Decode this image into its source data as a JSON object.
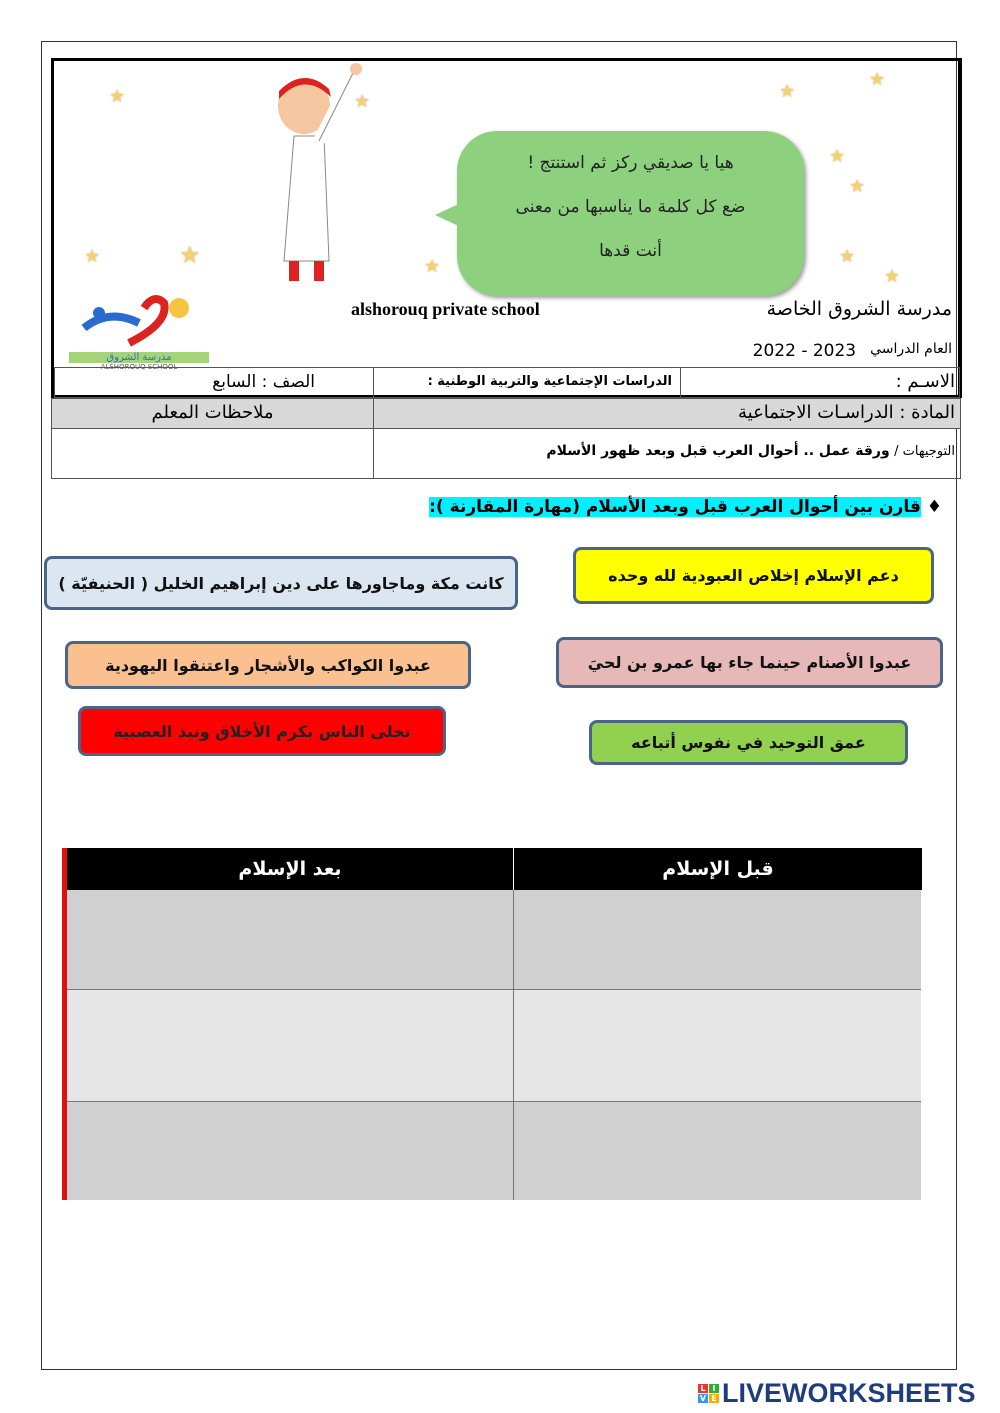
{
  "bubble": {
    "lines": [
      "هيا يا صديقي ركز ثم استنتج !",
      "ضع كل كلمة ما يناسبها من معنى",
      "أنت قدها"
    ]
  },
  "school": {
    "name_ar": "مدرسة الشروق الخاصة",
    "name_en": "alshorouq private school",
    "logo_text_ar": "مدرسة الشروق",
    "logo_text_en": "ALSHOROUQ SCHOOL",
    "year_label": "العام الدراسي",
    "year": "2022 - 2023"
  },
  "info": {
    "name_label": "الاسـم :",
    "subject_field": "الدراسات الإجتماعية والتربية الوطنية :",
    "grade": "الصف : السابع",
    "subject": "المادة : الدراسـات الاجتماعية",
    "teacher_notes": "ملاحظات المعلم",
    "directions_label": "التوجيهات /",
    "directions": "ورقة عمل .. أحوال العرب قبل وبعد ظهور الأسلام"
  },
  "question": "قارن بين أحوال العرب قبل وبعد الأسلام (مهارة المقارنة ):",
  "cards": [
    {
      "text": "دعم الإسلام إخلاص العبودية لله وحده",
      "color": "#ffff00"
    },
    {
      "text": "كانت مكة وماجاورها على دين إبراهيم الخليل ( الحنيفيّة )",
      "color": "#dce6f1"
    },
    {
      "text": "عبدوا الأصنام حينما جاء بها عمرو بن لحيَ",
      "color": "#e6b9b8"
    },
    {
      "text": "عبدوا الكواكب  والأشجار واعتنقوا اليهودية",
      "color": "#fac090"
    },
    {
      "text": "عمق التوحيد في نفوس أتباعه",
      "color": "#92d050"
    },
    {
      "text": "تحلى الناس بكرم الأخلاق ونبذ العصبية",
      "color": "#ff0000"
    }
  ],
  "table": {
    "headers": [
      "قبل الإسلام",
      "بعد الإسلام"
    ],
    "rows": [
      [
        "",
        ""
      ],
      [
        "",
        ""
      ],
      [
        "",
        ""
      ]
    ]
  },
  "footer": {
    "brand": "LIVEWORKSHEETS"
  }
}
